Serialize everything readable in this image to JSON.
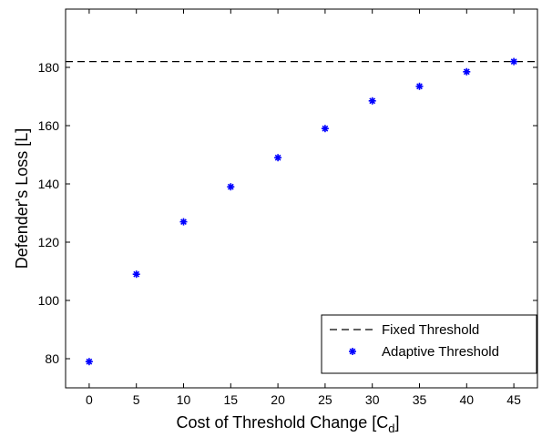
{
  "chart_data": {
    "type": "scatter",
    "xlabel": "Cost of Threshold Change [C",
    "xlabel_sub": "d",
    "xlabel_end": "]",
    "ylabel": "Defender's Loss [L]",
    "xlim": [
      -2.5,
      47.5
    ],
    "ylim": [
      70,
      200
    ],
    "x_ticks": [
      0,
      5,
      10,
      15,
      20,
      25,
      30,
      35,
      40,
      45
    ],
    "x_tick_labels": [
      "0",
      "5",
      "10",
      "15",
      "20",
      "25",
      "30",
      "35",
      "40",
      "45"
    ],
    "y_ticks": [
      80,
      100,
      120,
      140,
      160,
      180
    ],
    "y_tick_labels": [
      "80",
      "100",
      "120",
      "140",
      "160",
      "180"
    ],
    "grid": false,
    "legend_position": "bottom-right",
    "series": [
      {
        "name": "Fixed Threshold",
        "style": "dashed-line",
        "color": "#000000",
        "value": 182
      },
      {
        "name": "Adaptive Threshold",
        "style": "asterisk-marker",
        "color": "#0000ff",
        "x": [
          0,
          5,
          10,
          15,
          20,
          25,
          30,
          35,
          40,
          45
        ],
        "y": [
          79,
          109,
          127,
          139,
          149,
          159,
          168.5,
          173.5,
          178.5,
          182
        ]
      }
    ]
  }
}
